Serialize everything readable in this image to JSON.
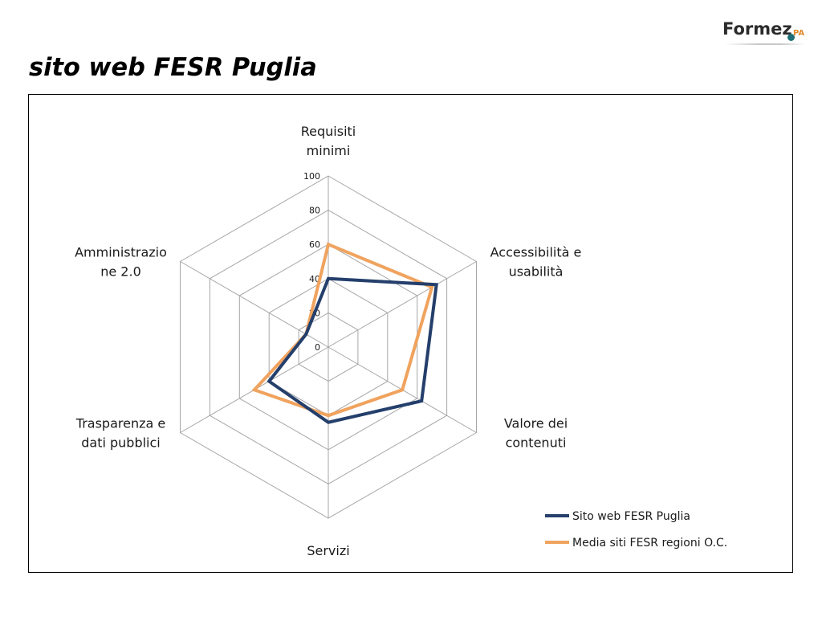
{
  "header": {
    "logo_text": "Formez",
    "logo_suffix": "PA",
    "title": "sito web FESR Puglia"
  },
  "chart_data": {
    "type": "radar",
    "axes": [
      [
        "Requisiti",
        "minimi"
      ],
      [
        "Accessibilità e",
        "usabilità"
      ],
      [
        "Valore dei",
        "contenuti"
      ],
      [
        "Servizi"
      ],
      [
        "Trasparenza e",
        "dati pubblici"
      ],
      [
        "Amministrazio",
        "ne 2.0"
      ]
    ],
    "rlim": [
      0,
      100
    ],
    "ticks": [
      0,
      20,
      40,
      60,
      80,
      100
    ],
    "grid": true,
    "legend_position": "bottom-right",
    "series": [
      {
        "name": "Sito web FESR Puglia",
        "color": "#243f6b",
        "values": [
          40,
          73,
          63,
          44,
          40,
          15
        ]
      },
      {
        "name": "Media siti FESR regioni O.C.",
        "color": "#f0a35e",
        "values": [
          60,
          70,
          50,
          40,
          50,
          15
        ]
      }
    ],
    "grid_color": "#a6a6a6"
  }
}
